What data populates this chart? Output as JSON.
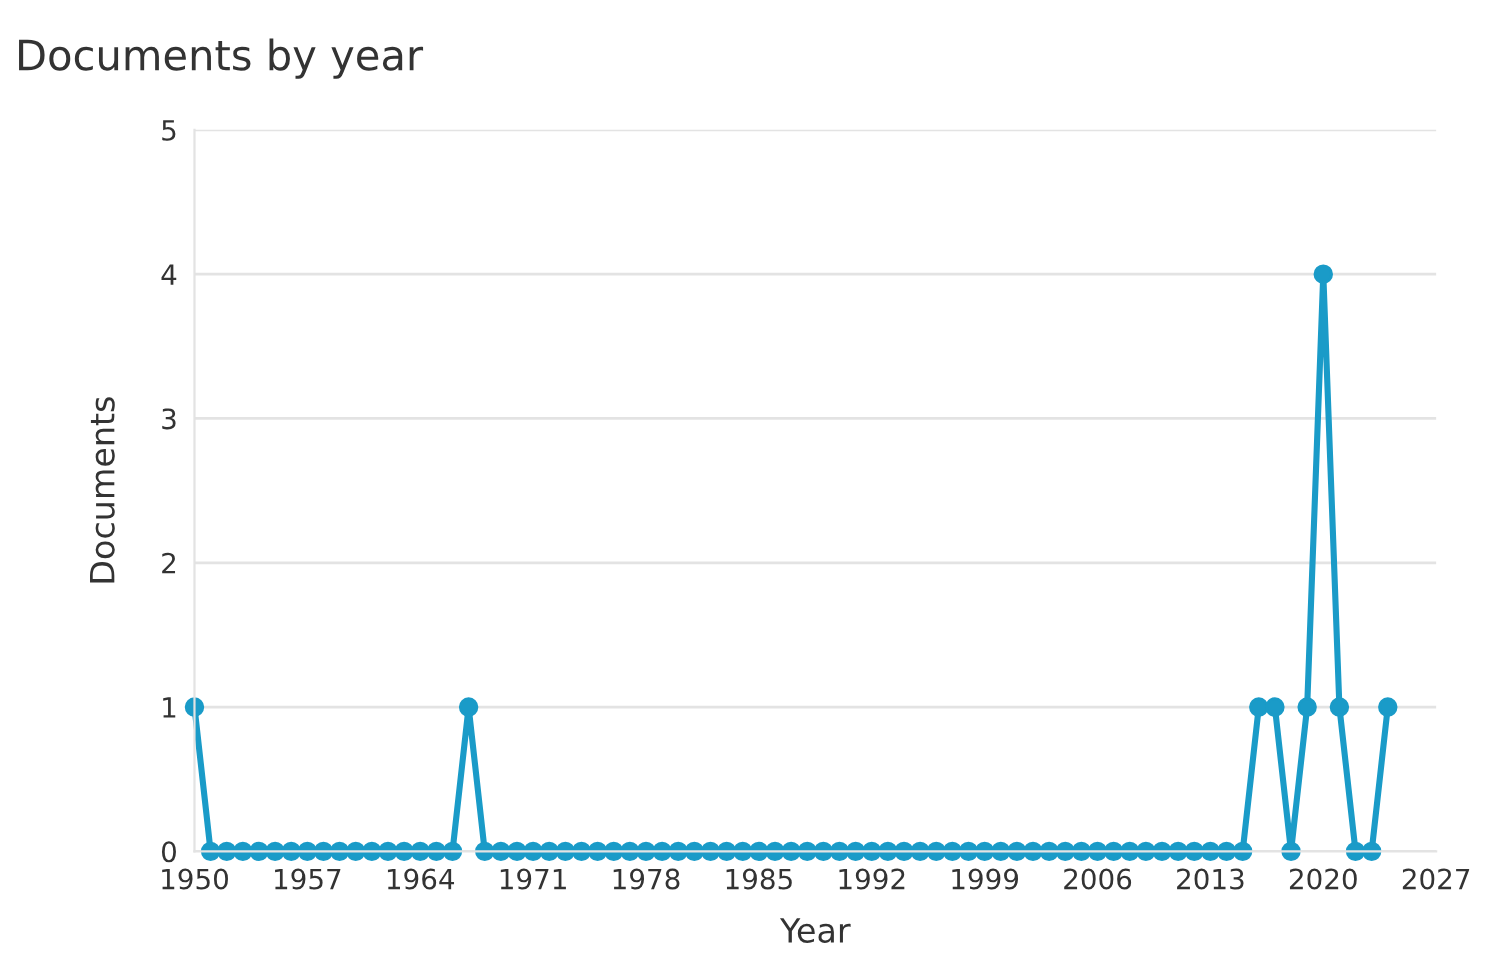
{
  "chart_data": {
    "type": "line",
    "title": "Documents by year",
    "xlabel": "Year",
    "ylabel": "Documents",
    "x": [
      1950,
      1951,
      1952,
      1953,
      1954,
      1955,
      1956,
      1957,
      1958,
      1959,
      1960,
      1961,
      1962,
      1963,
      1964,
      1965,
      1966,
      1967,
      1968,
      1969,
      1970,
      1971,
      1972,
      1973,
      1974,
      1975,
      1976,
      1977,
      1978,
      1979,
      1980,
      1981,
      1982,
      1983,
      1984,
      1985,
      1986,
      1987,
      1988,
      1989,
      1990,
      1991,
      1992,
      1993,
      1994,
      1995,
      1996,
      1997,
      1998,
      1999,
      2000,
      2001,
      2002,
      2003,
      2004,
      2005,
      2006,
      2007,
      2008,
      2009,
      2010,
      2011,
      2012,
      2013,
      2014,
      2015,
      2016,
      2017,
      2018,
      2019,
      2020,
      2021,
      2022,
      2023,
      2024
    ],
    "series": [
      {
        "color": "#1a9bc8",
        "values": [
          1,
          0,
          0,
          0,
          0,
          0,
          0,
          0,
          0,
          0,
          0,
          0,
          0,
          0,
          0,
          0,
          0,
          1,
          0,
          0,
          0,
          0,
          0,
          0,
          0,
          0,
          0,
          0,
          0,
          0,
          0,
          0,
          0,
          0,
          0,
          0,
          0,
          0,
          0,
          0,
          0,
          0,
          0,
          0,
          0,
          0,
          0,
          0,
          0,
          0,
          0,
          0,
          0,
          0,
          0,
          0,
          0,
          0,
          0,
          0,
          0,
          0,
          0,
          0,
          0,
          0,
          1,
          1,
          0,
          1,
          4,
          1,
          0,
          0,
          1
        ]
      }
    ],
    "xlim": [
      1950,
      2027
    ],
    "xticks": [
      1950,
      1957,
      1964,
      1971,
      1978,
      1985,
      1992,
      1999,
      2006,
      2013,
      2020,
      2027
    ],
    "ylim": [
      0,
      5
    ],
    "yticks": [
      0,
      1,
      2,
      3,
      4,
      5
    ],
    "grid": "y",
    "marker": "circle",
    "line_style": "solid"
  }
}
